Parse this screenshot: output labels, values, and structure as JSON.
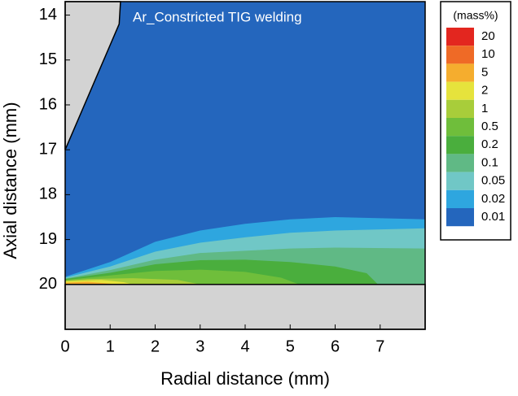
{
  "chart_data": {
    "type": "contour",
    "annotation": "Ar_Constricted TIG welding",
    "x_label": "Radial distance (mm)",
    "y_label": "Axial distance (mm)",
    "xlim": [
      0,
      8
    ],
    "xticks": [
      0,
      1,
      2,
      3,
      4,
      5,
      6,
      7
    ],
    "ylim": [
      13.7,
      21
    ],
    "yticks": [
      14,
      15,
      16,
      17,
      18,
      19,
      20
    ],
    "y_inverted": true,
    "legend_title": "(mass%)",
    "levels": [
      20,
      10,
      5,
      2,
      1,
      0.5,
      0.2,
      0.1,
      0.05,
      0.02,
      0.01
    ],
    "level_colors": [
      "#e3261f",
      "#ef6a26",
      "#f5ad2e",
      "#e6e33c",
      "#a8cd3a",
      "#6fbe3b",
      "#4aae3d",
      "#60b985",
      "#70c7c6",
      "#2ea6df",
      "#2466bd",
      "#1f4e9c"
    ]
  }
}
